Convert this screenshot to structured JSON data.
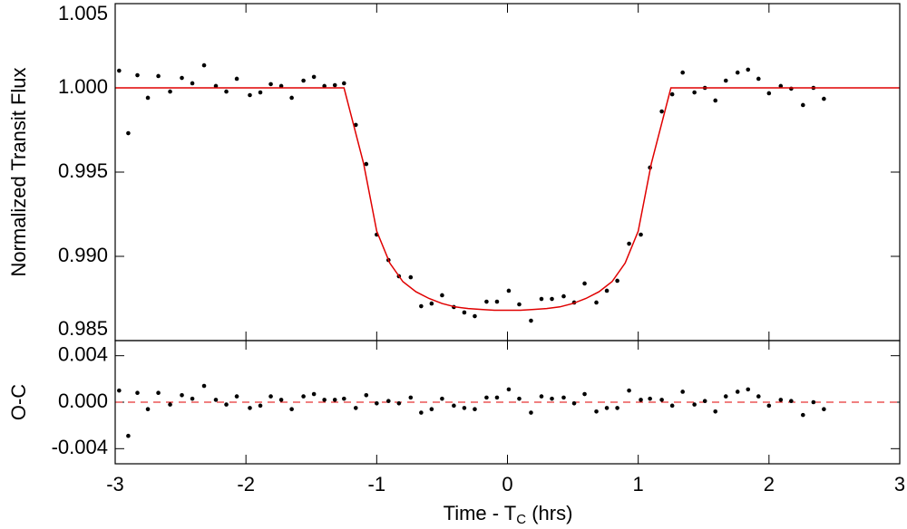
{
  "chart_data": [
    {
      "type": "scatter",
      "ylabel": "Normalized Transit Flux",
      "xlim": [
        -3,
        3
      ],
      "ylim": [
        0.985,
        1.005
      ],
      "xticks": [
        -3,
        -2,
        -1,
        0,
        1,
        2,
        3
      ],
      "xtick_labels": false,
      "yticks": [
        {
          "value": 0.985,
          "label": "0.985"
        },
        {
          "value": 0.99,
          "label": "0.990"
        },
        {
          "value": 0.995,
          "label": "0.995"
        },
        {
          "value": 1,
          "label": "1.000"
        },
        {
          "value": 1.005,
          "label": "1.005"
        }
      ],
      "series": [
        {
          "type": "scatter",
          "color": "#000000",
          "x": [
            -2.97,
            -2.9,
            -2.83,
            -2.75,
            -2.67,
            -2.58,
            -2.49,
            -2.41,
            -2.32,
            -2.23,
            -2.15,
            -2.07,
            -1.97,
            -1.89,
            -1.81,
            -1.73,
            -1.65,
            -1.56,
            -1.48,
            -1.4,
            -1.32,
            -1.25,
            -1.16,
            -1.08,
            -1.0,
            -0.91,
            -0.83,
            -0.74,
            -0.66,
            -0.58,
            -0.5,
            -0.41,
            -0.33,
            -0.25,
            -0.16,
            -0.08,
            0.01,
            0.09,
            0.18,
            0.26,
            0.34,
            0.43,
            0.51,
            0.59,
            0.68,
            0.76,
            0.84,
            0.93,
            1.02,
            1.09,
            1.18,
            1.26,
            1.34,
            1.43,
            1.51,
            1.59,
            1.67,
            1.76,
            1.84,
            1.92,
            2.0,
            2.09,
            2.17,
            2.26,
            2.34,
            2.42
          ],
          "values": [
            1.00102,
            0.99731,
            1.00075,
            0.99941,
            1.0007,
            0.99978,
            1.00059,
            1.00027,
            1.00134,
            1.00011,
            0.99978,
            1.00054,
            0.99957,
            0.99973,
            1.00022,
            1.00011,
            0.99941,
            1.00043,
            1.00065,
            1.00011,
            1.00016,
            1.00027,
            0.9978,
            0.99548,
            0.99129,
            0.98978,
            0.98882,
            0.98876,
            0.98704,
            0.9872,
            0.98769,
            0.98699,
            0.98667,
            0.98645,
            0.98731,
            0.98731,
            0.98796,
            0.98715,
            0.98618,
            0.98747,
            0.98747,
            0.98763,
            0.98726,
            0.98839,
            0.98726,
            0.98796,
            0.98855,
            0.99075,
            0.99129,
            0.99527,
            0.9986,
            0.99962,
            1.00091,
            0.99973,
            1.0,
            0.99925,
            1.00043,
            1.00091,
            1.00108,
            1.00054,
            0.99968,
            1.00011,
            0.99995,
            0.99898,
            1.0,
            0.99935
          ]
        },
        {
          "type": "line",
          "color": "#e00000",
          "x": [
            -3,
            -1.25,
            -1.2,
            -1.1,
            -1.0,
            -0.9,
            -0.8,
            -0.7,
            -0.6,
            -0.5,
            -0.4,
            -0.3,
            -0.2,
            -0.1,
            0,
            0.1,
            0.2,
            0.3,
            0.4,
            0.5,
            0.6,
            0.7,
            0.8,
            0.9,
            1.0,
            1.1,
            1.2,
            1.25,
            3
          ],
          "values": [
            1.0,
            1.0,
            0.9985,
            0.9955,
            0.9915,
            0.9896,
            0.9885,
            0.9879,
            0.9875,
            0.9872,
            0.987,
            0.9869,
            0.98685,
            0.9868,
            0.9868,
            0.9868,
            0.98685,
            0.9869,
            0.987,
            0.9872,
            0.9875,
            0.9879,
            0.9885,
            0.9896,
            0.9915,
            0.9955,
            0.9985,
            1.0,
            1.0
          ]
        }
      ]
    },
    {
      "type": "scatter",
      "ylabel": "O-C",
      "xlabel": "Time - T",
      "xlabel_sub": "C",
      "xlabel_end": " (hrs)",
      "xlim": [
        -3,
        3
      ],
      "ylim": [
        -0.0053,
        0.0053
      ],
      "xticks": [
        -3,
        -2,
        -1,
        0,
        1,
        2,
        3
      ],
      "yticks": [
        -0.004,
        {
          "value": 0,
          "label": "0.000"
        },
        0.004
      ],
      "hline": {
        "value": 0,
        "color": "#e00000",
        "dashed": true
      },
      "series": [
        {
          "type": "scatter",
          "color": "#000000",
          "x": [
            -2.97,
            -2.9,
            -2.83,
            -2.75,
            -2.67,
            -2.58,
            -2.49,
            -2.41,
            -2.32,
            -2.23,
            -2.15,
            -2.07,
            -1.97,
            -1.89,
            -1.81,
            -1.73,
            -1.65,
            -1.56,
            -1.48,
            -1.4,
            -1.32,
            -1.25,
            -1.16,
            -1.08,
            -1.0,
            -0.91,
            -0.83,
            -0.74,
            -0.66,
            -0.58,
            -0.5,
            -0.41,
            -0.33,
            -0.25,
            -0.16,
            -0.08,
            0.01,
            0.09,
            0.18,
            0.26,
            0.34,
            0.43,
            0.51,
            0.59,
            0.68,
            0.76,
            0.84,
            0.93,
            1.02,
            1.09,
            1.18,
            1.26,
            1.34,
            1.43,
            1.51,
            1.59,
            1.67,
            1.76,
            1.84,
            1.92,
            2.0,
            2.09,
            2.17,
            2.26,
            2.34,
            2.42
          ],
          "values": [
            0.001,
            -0.0029,
            0.0008,
            -0.0006,
            0.0008,
            -0.0002,
            0.0006,
            0.0003,
            0.0014,
            0.0002,
            -0.0002,
            0.0005,
            -0.0005,
            -0.0003,
            0.0005,
            0.0002,
            -0.0006,
            0.0005,
            0.0007,
            0.0002,
            0.0002,
            0.0003,
            -0.0005,
            0.0006,
            -0.0001,
            0.0001,
            -0.0001,
            0.0004,
            -0.0009,
            -0.0006,
            0.0003,
            -0.0003,
            -0.0005,
            -0.0006,
            0.0004,
            0.0004,
            0.0011,
            0.0003,
            -0.0009,
            0.0005,
            0.0003,
            0.0004,
            -0.0001,
            0.0007,
            -0.0008,
            -0.0005,
            -0.0005,
            0.001,
            0.0002,
            0.0003,
            0.0002,
            -0.0003,
            0.0009,
            -0.0002,
            0.0001,
            -0.0008,
            0.0005,
            0.0009,
            0.0011,
            0.0005,
            -0.0003,
            0.0002,
            0.0001,
            -0.0011,
            0,
            -0.0006
          ]
        }
      ]
    }
  ]
}
